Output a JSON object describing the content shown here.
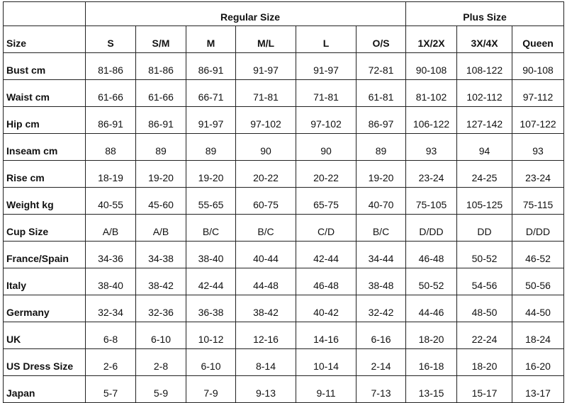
{
  "groups": {
    "regular": "Regular Size",
    "plus": "Plus Size"
  },
  "header": {
    "label": "Size",
    "sizes": [
      "S",
      "S/M",
      "M",
      "M/L",
      "L",
      "O/S",
      "1X/2X",
      "3X/4X",
      "Queen"
    ]
  },
  "rows": [
    {
      "label": "Bust cm",
      "values": [
        "81-86",
        "81-86",
        "86-91",
        "91-97",
        "91-97",
        "72-81",
        "90-108",
        "108-122",
        "90-108"
      ]
    },
    {
      "label": "Waist cm",
      "values": [
        "61-66",
        "61-66",
        "66-71",
        "71-81",
        "71-81",
        "61-81",
        "81-102",
        "102-112",
        "97-112"
      ]
    },
    {
      "label": "Hip cm",
      "values": [
        "86-91",
        "86-91",
        "91-97",
        "97-102",
        "97-102",
        "86-97",
        "106-122",
        "127-142",
        "107-122"
      ]
    },
    {
      "label": "Inseam cm",
      "values": [
        "88",
        "89",
        "89",
        "90",
        "90",
        "89",
        "93",
        "94",
        "93"
      ]
    },
    {
      "label": "Rise cm",
      "values": [
        "18-19",
        "19-20",
        "19-20",
        "20-22",
        "20-22",
        "19-20",
        "23-24",
        "24-25",
        "23-24"
      ]
    },
    {
      "label": "Weight kg",
      "values": [
        "40-55",
        "45-60",
        "55-65",
        "60-75",
        "65-75",
        "40-70",
        "75-105",
        "105-125",
        "75-115"
      ]
    },
    {
      "label": "Cup Size",
      "values": [
        "A/B",
        "A/B",
        "B/C",
        "B/C",
        "C/D",
        "B/C",
        "D/DD",
        "DD",
        "D/DD"
      ]
    },
    {
      "label": "France/Spain",
      "values": [
        "34-36",
        "34-38",
        "38-40",
        "40-44",
        "42-44",
        "34-44",
        "46-48",
        "50-52",
        "46-52"
      ]
    },
    {
      "label": "Italy",
      "values": [
        "38-40",
        "38-42",
        "42-44",
        "44-48",
        "46-48",
        "38-48",
        "50-52",
        "54-56",
        "50-56"
      ]
    },
    {
      "label": "Germany",
      "values": [
        "32-34",
        "32-36",
        "36-38",
        "38-42",
        "40-42",
        "32-42",
        "44-46",
        "48-50",
        "44-50"
      ]
    },
    {
      "label": "UK",
      "values": [
        "6-8",
        "6-10",
        "10-12",
        "12-16",
        "14-16",
        "6-16",
        "18-20",
        "22-24",
        "18-24"
      ]
    },
    {
      "label": "US Dress Size",
      "values": [
        "2-6",
        "2-8",
        "6-10",
        "8-14",
        "10-14",
        "2-14",
        "16-18",
        "18-20",
        "16-20"
      ]
    },
    {
      "label": "Japan",
      "values": [
        "5-7",
        "5-9",
        "7-9",
        "9-13",
        "9-11",
        "7-13",
        "13-15",
        "15-17",
        "13-17"
      ]
    }
  ]
}
